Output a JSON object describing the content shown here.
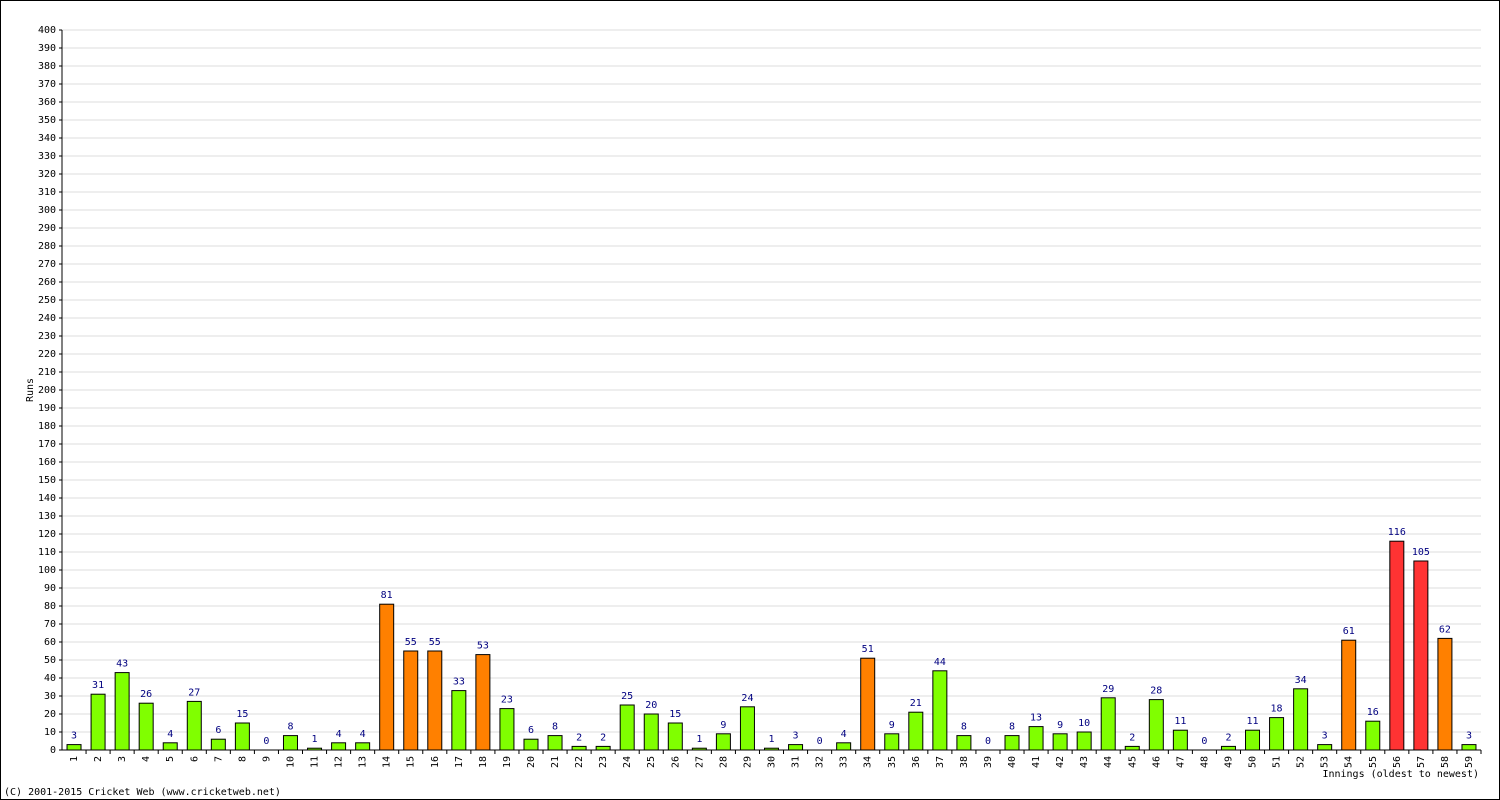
{
  "chart_data": {
    "type": "bar",
    "y_label": "Runs",
    "x_label": "Innings (oldest to newest)",
    "footer": "(C) 2001-2015 Cricket Web (www.cricketweb.net)",
    "categories": [
      "1",
      "2",
      "3",
      "4",
      "5",
      "6",
      "7",
      "8",
      "9",
      "10",
      "11",
      "12",
      "13",
      "14",
      "15",
      "16",
      "17",
      "18",
      "19",
      "20",
      "21",
      "22",
      "23",
      "24",
      "25",
      "26",
      "27",
      "28",
      "29",
      "30",
      "31",
      "32",
      "33",
      "34",
      "35",
      "36",
      "37",
      "38",
      "39",
      "40",
      "41",
      "42",
      "43",
      "44",
      "45",
      "46",
      "47",
      "48",
      "49",
      "50",
      "51",
      "52",
      "53",
      "54",
      "55",
      "56",
      "57",
      "58",
      "59"
    ],
    "values": [
      3,
      31,
      43,
      26,
      4,
      27,
      6,
      15,
      0,
      8,
      1,
      4,
      4,
      81,
      55,
      55,
      33,
      53,
      23,
      6,
      8,
      2,
      2,
      25,
      20,
      15,
      1,
      9,
      24,
      1,
      3,
      0,
      4,
      51,
      9,
      21,
      44,
      8,
      0,
      8,
      13,
      9,
      10,
      29,
      2,
      28,
      11,
      0,
      2,
      11,
      18,
      34,
      3,
      61,
      16,
      116,
      105,
      62,
      3
    ],
    "colors": [
      "#80ff00",
      "#80ff00",
      "#80ff00",
      "#80ff00",
      "#80ff00",
      "#80ff00",
      "#80ff00",
      "#80ff00",
      "#80ff00",
      "#80ff00",
      "#80ff00",
      "#80ff00",
      "#80ff00",
      "#ff8000",
      "#ff8000",
      "#ff8000",
      "#80ff00",
      "#ff8000",
      "#80ff00",
      "#80ff00",
      "#80ff00",
      "#80ff00",
      "#80ff00",
      "#80ff00",
      "#80ff00",
      "#80ff00",
      "#80ff00",
      "#80ff00",
      "#80ff00",
      "#80ff00",
      "#80ff00",
      "#80ff00",
      "#80ff00",
      "#ff8000",
      "#80ff00",
      "#80ff00",
      "#80ff00",
      "#80ff00",
      "#80ff00",
      "#80ff00",
      "#80ff00",
      "#80ff00",
      "#80ff00",
      "#80ff00",
      "#80ff00",
      "#80ff00",
      "#80ff00",
      "#80ff00",
      "#80ff00",
      "#80ff00",
      "#80ff00",
      "#80ff00",
      "#80ff00",
      "#ff8000",
      "#80ff00",
      "#ff3333",
      "#ff3333",
      "#ff8000",
      "#80ff00"
    ],
    "ylim": [
      0,
      400
    ],
    "yticks": [
      0,
      10,
      20,
      30,
      40,
      50,
      60,
      70,
      80,
      90,
      100,
      110,
      120,
      130,
      140,
      150,
      160,
      170,
      180,
      190,
      200,
      210,
      220,
      230,
      240,
      250,
      260,
      270,
      280,
      290,
      300,
      310,
      320,
      330,
      340,
      350,
      360,
      370,
      380,
      390,
      400
    ],
    "grid": true
  }
}
